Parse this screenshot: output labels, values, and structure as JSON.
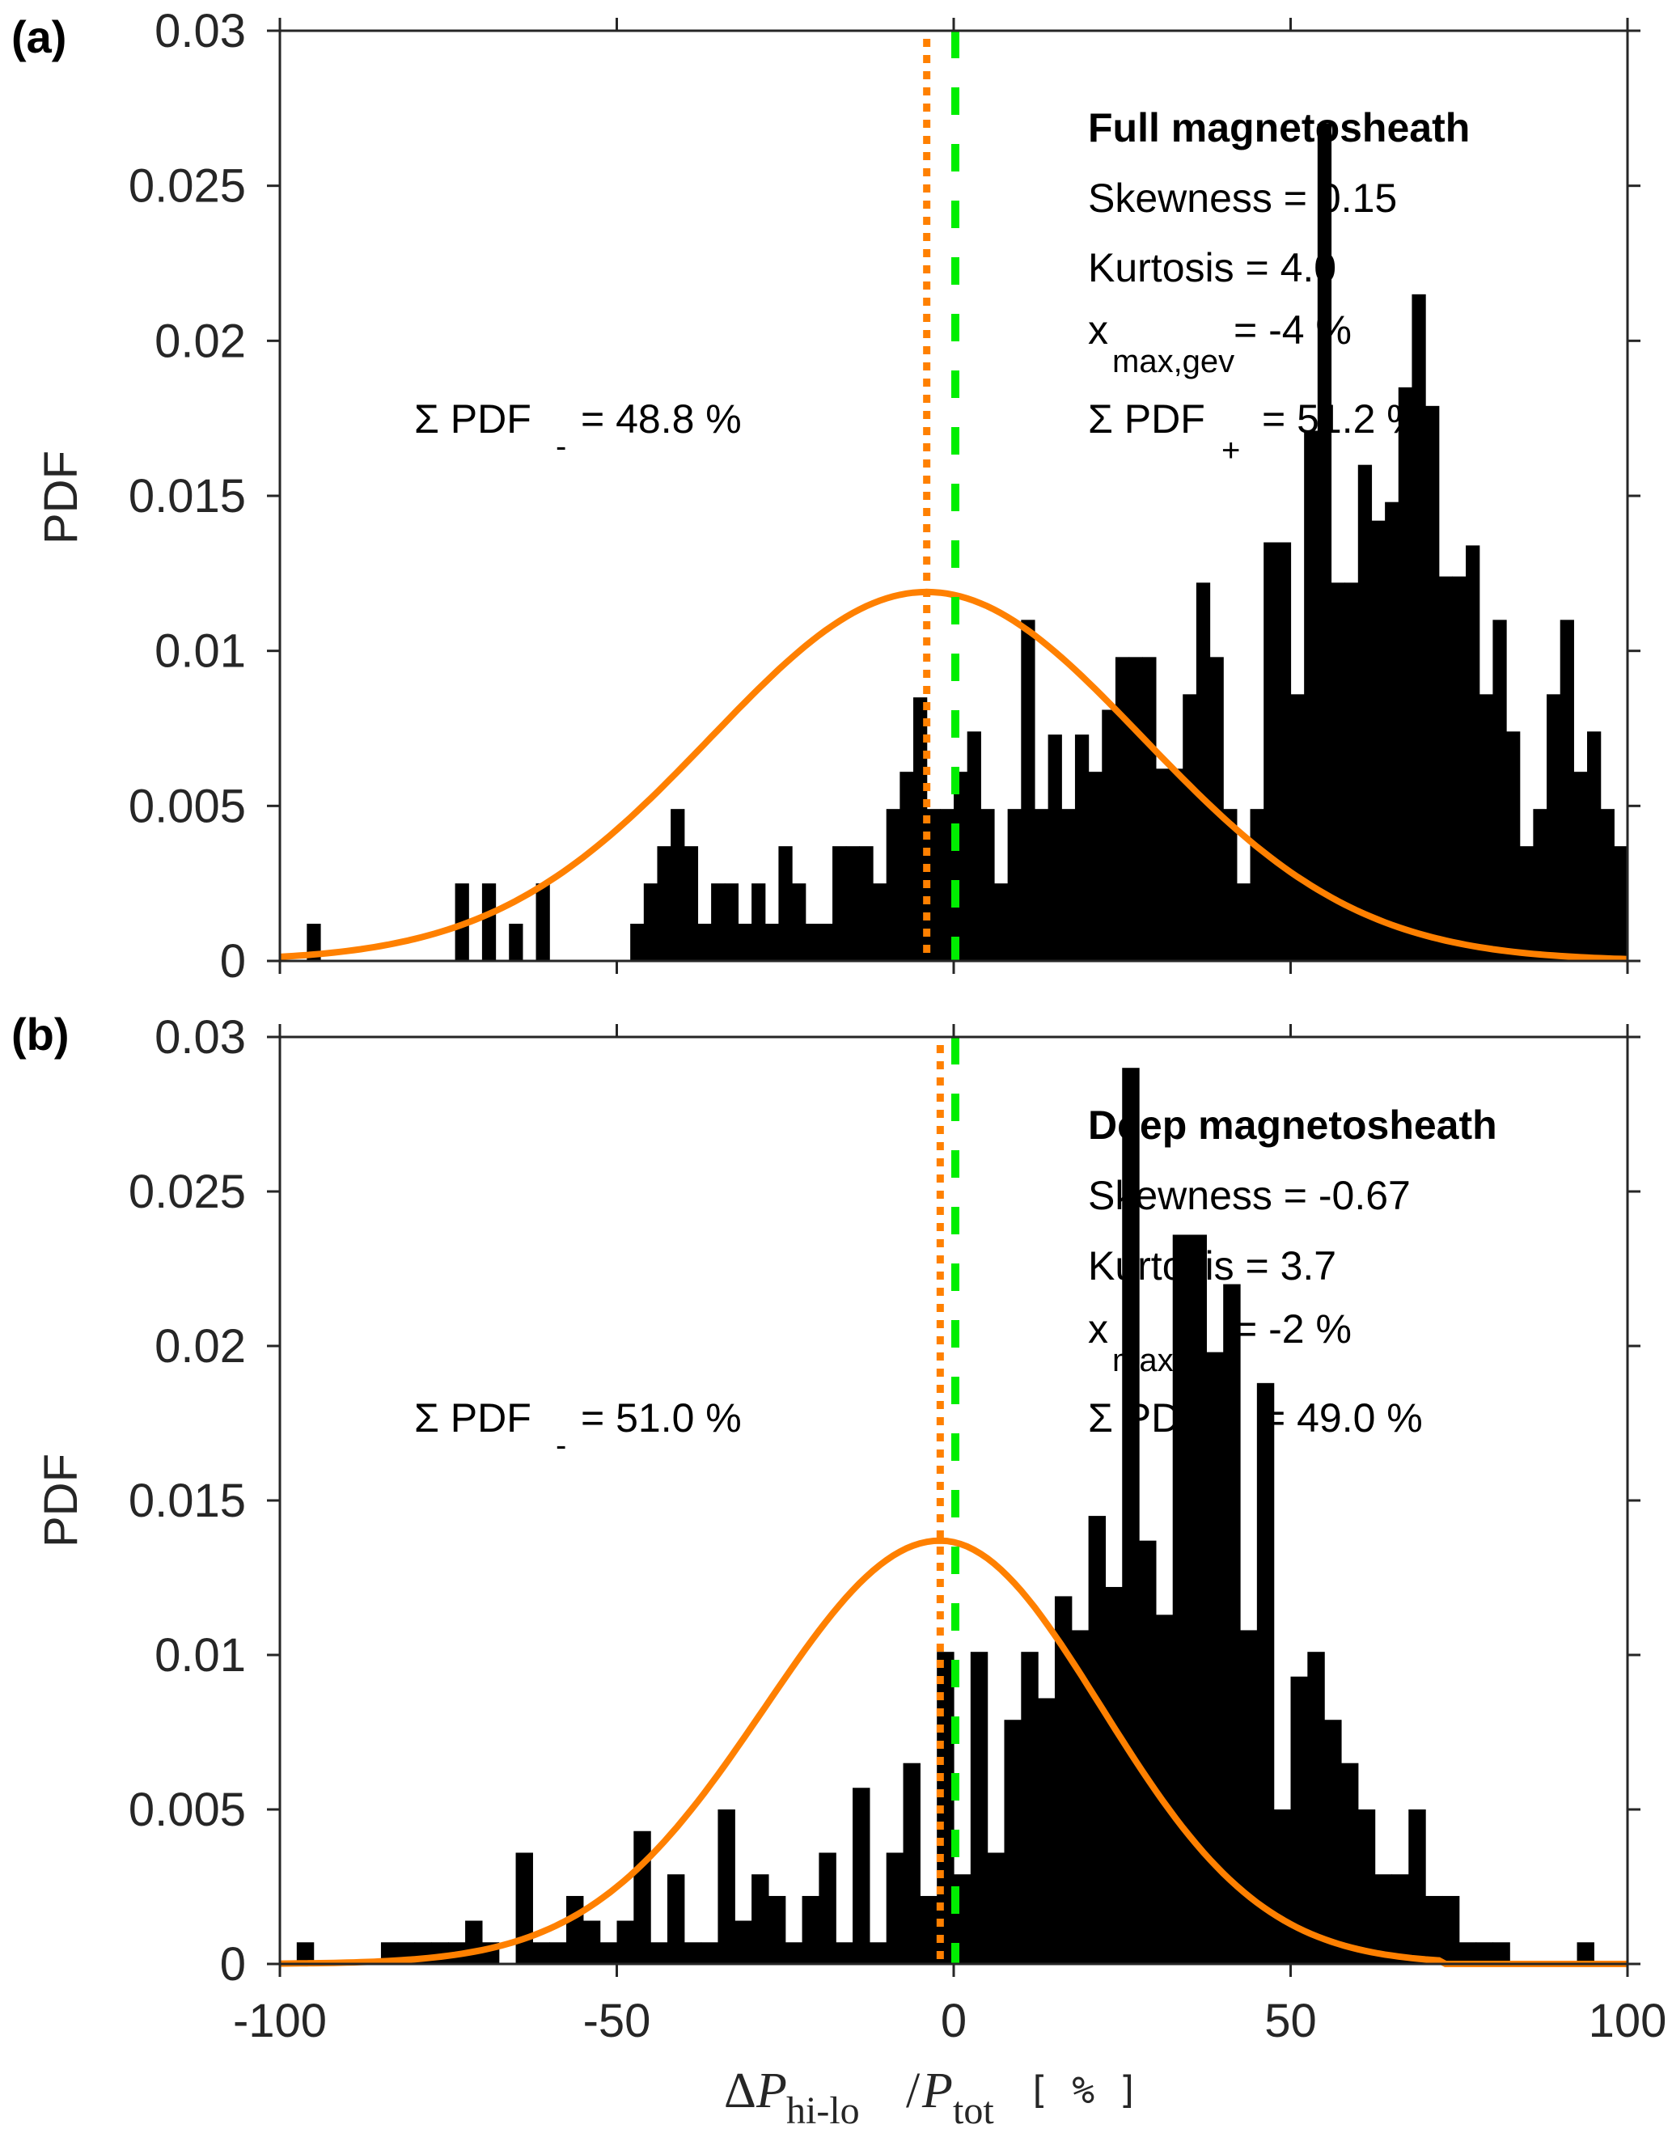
{
  "chart_data": [
    {
      "type": "bar",
      "panel_label": "(a)",
      "title": "Full magnetosheath",
      "xlabel": "ΔP_hi-lo / P_tot [%]",
      "ylabel": "PDF",
      "xlim": [
        -100,
        100
      ],
      "ylim": [
        0,
        0.03
      ],
      "xticks": [
        "-100",
        "-50",
        "0",
        "50",
        "100"
      ],
      "yticks": [
        "0",
        "0.005",
        "0.01",
        "0.015",
        "0.02",
        "0.025",
        "0.03"
      ],
      "ytick_values": [
        0,
        0.005,
        0.01,
        0.015,
        0.02,
        0.025,
        0.03
      ],
      "xtick_values": [
        -100,
        -50,
        0,
        50,
        100
      ],
      "grid": false,
      "histogram": {
        "bin_start": -100,
        "bin_width": 2,
        "values": [
          0,
          0,
          0.0012,
          0,
          0,
          0,
          0,
          0,
          0,
          0,
          0,
          0,
          0,
          0.0025,
          0,
          0.0025,
          0,
          0.0012,
          0,
          0.0025,
          0,
          0,
          0,
          0,
          0,
          0,
          0.0012,
          0.0025,
          0.0037,
          0.0049,
          0.0037,
          0.0012,
          0.0025,
          0.0025,
          0.0012,
          0.0025,
          0.0012,
          0.0037,
          0.0025,
          0.0012,
          0.0012,
          0.0037,
          0.0037,
          0.0037,
          0.0025,
          0.0049,
          0.0061,
          0.0085,
          0.0049,
          0.0049,
          0.0061,
          0.0074,
          0.0049,
          0.0025,
          0.0049,
          0.011,
          0.0049,
          0.0073,
          0.0049,
          0.0073,
          0.0061,
          0.0081,
          0.0098,
          0.0098,
          0.0098,
          0.0062,
          0.0062,
          0.0086,
          0.0122,
          0.0098,
          0.0049,
          0.0025,
          0.0049,
          0.0135,
          0.0135,
          0.0086,
          0.0171,
          0.027,
          0.0122,
          0.0122,
          0.016,
          0.0142,
          0.0148,
          0.0185,
          0.0215,
          0.0179,
          0.0124,
          0.0124,
          0.0134,
          0.0086,
          0.011,
          0.0074,
          0.0037,
          0.0049,
          0.0086,
          0.011,
          0.0061,
          0.0074,
          0.0049,
          0.0037
        ],
        "note_values_are_pdf": true
      },
      "fit_curve": {
        "name": "GEV fit",
        "color": "#ff8000",
        "peak_x": -4,
        "peak_y": 0.0119
      },
      "vlines": [
        {
          "name": "x_max_gev",
          "x": -4,
          "style": "dotted",
          "color": "#ff8000"
        },
        {
          "name": "zero",
          "x": 0,
          "style": "dashed",
          "color": "#00ee00"
        }
      ],
      "annotations": {
        "heading": "Full magnetosheath",
        "skewness": "Skewness = 0.15",
        "kurtosis": "Kurtosis = 4.0",
        "xmax_main": "x",
        "xmax_sub": "max,gev",
        "xmax_value": "= -4 %",
        "pdf_plus_main": "Σ PDF",
        "pdf_plus_sub": "+",
        "pdf_plus_value": "= 51.2 %",
        "pdf_minus_main": "Σ PDF",
        "pdf_minus_sub": "-",
        "pdf_minus_value": "= 48.8 %"
      }
    },
    {
      "type": "bar",
      "panel_label": "(b)",
      "title": "Deep magnetosheath",
      "xlabel": "ΔP_hi-lo / P_tot [%]",
      "ylabel": "PDF",
      "xlim": [
        -100,
        100
      ],
      "ylim": [
        0,
        0.03
      ],
      "xticks": [
        "-100",
        "-50",
        "0",
        "50",
        "100"
      ],
      "yticks": [
        "0",
        "0.005",
        "0.01",
        "0.015",
        "0.02",
        "0.025",
        "0.03"
      ],
      "ytick_values": [
        0,
        0.005,
        0.01,
        0.015,
        0.02,
        0.025,
        0.03
      ],
      "xtick_values": [
        -100,
        -50,
        0,
        50,
        100
      ],
      "grid": false,
      "histogram": {
        "bin_start": -100,
        "bin_width": 2.5,
        "values": [
          0,
          0.0007,
          0,
          0,
          0,
          0,
          0.0007,
          0.0007,
          0.0007,
          0.0007,
          0.0007,
          0.0014,
          0.0007,
          0,
          0.0036,
          0.0007,
          0.0007,
          0.0022,
          0.0014,
          0.0007,
          0.0014,
          0.0043,
          0.0007,
          0.0029,
          0.0007,
          0.0007,
          0.005,
          0.0014,
          0.0029,
          0.0022,
          0.0007,
          0.0022,
          0.0036,
          0.0007,
          0.0057,
          0.0007,
          0.0036,
          0.0065,
          0.0022,
          0.0101,
          0.0029,
          0.0101,
          0.0036,
          0.0079,
          0.0101,
          0.0086,
          0.0119,
          0.0108,
          0.0145,
          0.0122,
          0.029,
          0.0137,
          0.0113,
          0.0236,
          0.0236,
          0.0198,
          0.022,
          0.0108,
          0.0188,
          0.005,
          0.0093,
          0.0101,
          0.0079,
          0.0065,
          0.005,
          0.0029,
          0.0029,
          0.005,
          0.0022,
          0.0022,
          0.0007,
          0.0007,
          0.0007,
          0,
          0,
          0,
          0,
          0.0007,
          0,
          0
        ],
        "note_values_are_pdf": true
      },
      "fit_curve": {
        "name": "GEV fit",
        "color": "#ff8000",
        "peak_x": -2,
        "peak_y": 0.0137
      },
      "vlines": [
        {
          "name": "x_max_gev",
          "x": -2,
          "style": "dotted",
          "color": "#ff8000"
        },
        {
          "name": "zero",
          "x": 0,
          "style": "dashed",
          "color": "#00ee00"
        }
      ],
      "annotations": {
        "heading": "Deep magnetosheath",
        "skewness": "Skewness = -0.67",
        "kurtosis": "Kurtosis = 3.7",
        "xmax_main": "x",
        "xmax_sub": "max,gev",
        "xmax_value": "= -2 %",
        "pdf_plus_main": "Σ PDF",
        "pdf_plus_sub": "+",
        "pdf_plus_value": "= 49.0 %",
        "pdf_minus_main": "Σ PDF",
        "pdf_minus_sub": "-",
        "pdf_minus_value": "= 51.0 %"
      }
    }
  ],
  "xlabel_parts": {
    "delta": "Δ",
    "p1": "P",
    "sub1": "hi-lo",
    "slash": "/",
    "p2": "P",
    "sub2": "tot",
    "unit": "[ % ]"
  },
  "colors": {
    "bars": "#000000",
    "fit": "#ff8000",
    "zero_line": "#00ee00",
    "axis": "#262626"
  }
}
